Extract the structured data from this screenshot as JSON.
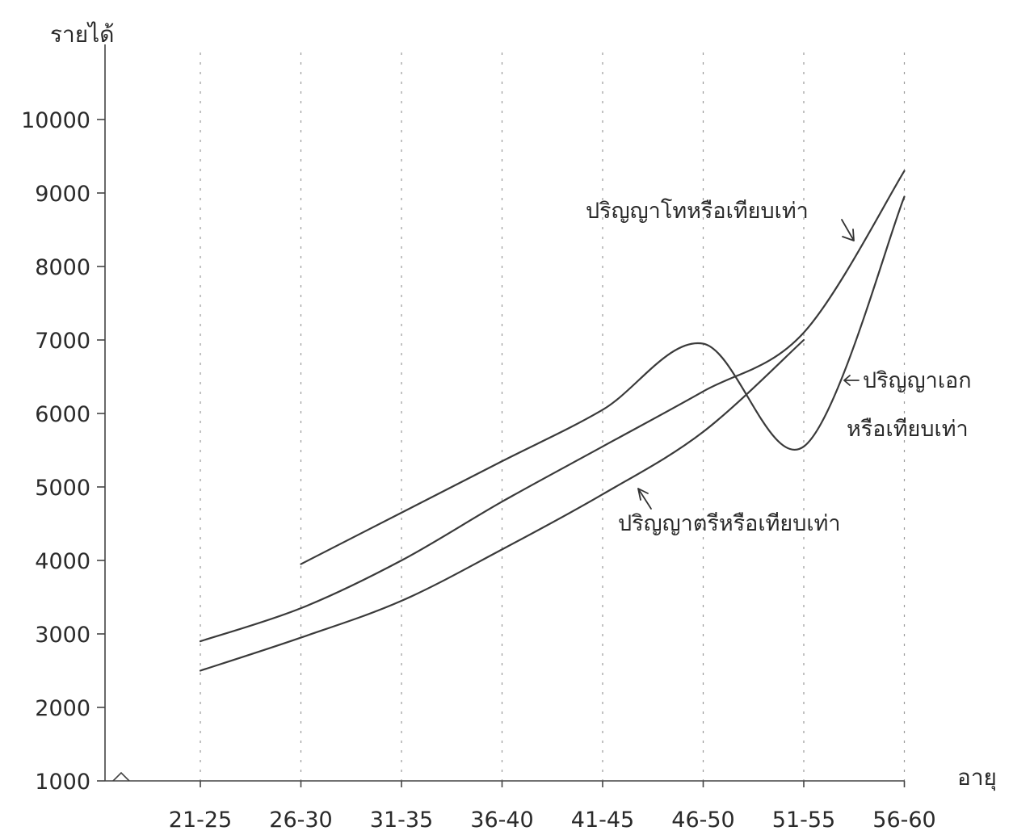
{
  "chart_data": {
    "type": "line",
    "title": "",
    "ylabel": "รายได้",
    "xlabel": "อายุ",
    "categories": [
      "21-25",
      "26-30",
      "31-35",
      "36-40",
      "41-45",
      "46-50",
      "51-55",
      "56-60"
    ],
    "yticks": [
      "1000",
      "2000",
      "3000",
      "4000",
      "5000",
      "6000",
      "7000",
      "8000",
      "9000",
      "10000"
    ],
    "ylim": [
      1000,
      10000
    ],
    "grid": "vertical-dotted",
    "series": [
      {
        "name": "ปริญญาโทหรือเทียบเท่า",
        "values": [
          2900,
          3350,
          4000,
          4800,
          5550,
          6300,
          7100,
          9300
        ]
      },
      {
        "name": "ปริญญาเอก หรือเทียบเท่า",
        "values": [
          null,
          3950,
          4650,
          5350,
          6050,
          6950,
          5550,
          8950
        ]
      },
      {
        "name": "ปริญญาตรีหรือเทียบเท่า",
        "values": [
          2500,
          2950,
          3450,
          4150,
          4900,
          5750,
          7000,
          null
        ]
      }
    ],
    "annotations": {
      "masters": "ปริญญาโทหรือเทียบเท่า",
      "doctorate_line1": "ปริญญาเอก",
      "doctorate_line2": "หรือเทียบเท่า",
      "bachelors": "ปริญญาตรีหรือเทียบเท่า"
    }
  }
}
